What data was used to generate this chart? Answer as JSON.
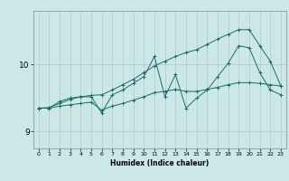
{
  "xlabel": "Humidex (Indice chaleur)",
  "xlim": [
    -0.5,
    23.5
  ],
  "ylim": [
    8.75,
    10.8
  ],
  "yticks": [
    9,
    10
  ],
  "xticks": [
    0,
    1,
    2,
    3,
    4,
    5,
    6,
    7,
    8,
    9,
    10,
    11,
    12,
    13,
    14,
    15,
    16,
    17,
    18,
    19,
    20,
    21,
    22,
    23
  ],
  "bg_color": "#cce8e6",
  "grid_color": "#aacccc",
  "line_color": "#1a6b6b",
  "series1_x": [
    0,
    1,
    2,
    3,
    4,
    5,
    6,
    7,
    8,
    9,
    10,
    11,
    12,
    13,
    14,
    15,
    16,
    17,
    18,
    19,
    20,
    21,
    22,
    23
  ],
  "series1_y": [
    9.35,
    9.35,
    9.45,
    9.5,
    9.52,
    9.52,
    9.28,
    9.55,
    9.62,
    9.72,
    9.82,
    10.12,
    9.52,
    9.85,
    9.35,
    9.5,
    9.62,
    9.82,
    10.02,
    10.28,
    10.25,
    9.88,
    9.62,
    9.55
  ],
  "series2_x": [
    0,
    1,
    2,
    3,
    4,
    5,
    6,
    7,
    8,
    9,
    10,
    11,
    12,
    13,
    14,
    15,
    16,
    17,
    18,
    19,
    20,
    21,
    22,
    23
  ],
  "series2_y": [
    9.35,
    9.36,
    9.42,
    9.48,
    9.52,
    9.54,
    9.55,
    9.62,
    9.7,
    9.78,
    9.88,
    9.98,
    10.05,
    10.12,
    10.18,
    10.22,
    10.3,
    10.38,
    10.45,
    10.52,
    10.52,
    10.28,
    10.05,
    9.68
  ],
  "series3_x": [
    0,
    1,
    2,
    3,
    4,
    5,
    6,
    7,
    8,
    9,
    10,
    11,
    12,
    13,
    14,
    15,
    16,
    17,
    18,
    19,
    20,
    21,
    22,
    23
  ],
  "series3_y": [
    9.35,
    9.35,
    9.38,
    9.4,
    9.42,
    9.44,
    9.32,
    9.38,
    9.42,
    9.47,
    9.52,
    9.58,
    9.6,
    9.63,
    9.6,
    9.6,
    9.63,
    9.66,
    9.7,
    9.73,
    9.73,
    9.72,
    9.7,
    9.68
  ]
}
